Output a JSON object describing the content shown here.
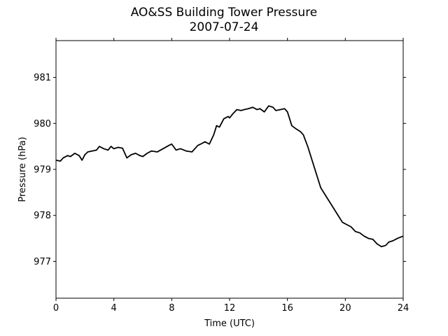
{
  "chart_data": {
    "type": "line",
    "title": "AO&SS Building Tower Pressure",
    "subtitle": "2007-07-24",
    "xlabel": "Time (UTC)",
    "ylabel": "Pressure (hPa)",
    "xlim": [
      0,
      24
    ],
    "ylim": [
      976.2,
      981.8
    ],
    "xticks": [
      "0",
      "4",
      "8",
      "12",
      "16",
      "20",
      "24"
    ],
    "yticks": [
      "977",
      "978",
      "979",
      "980",
      "981"
    ],
    "grid": false,
    "series_color": "#000000",
    "series": [
      {
        "x": [
          0,
          0.3,
          0.5,
          0.8,
          1.0,
          1.3,
          1.6,
          1.8,
          2.0,
          2.2,
          2.5,
          2.8,
          3.0,
          3.3,
          3.6,
          3.8,
          4.0,
          4.3,
          4.6,
          4.9,
          5.2,
          5.5,
          5.8,
          6.0,
          6.3,
          6.6,
          7.0,
          7.4,
          7.8,
          8.0,
          8.3,
          8.6,
          9.0,
          9.4,
          9.8,
          10.0,
          10.3,
          10.6,
          10.9,
          11.1,
          11.3,
          11.6,
          11.9,
          12.0,
          12.2,
          12.5,
          12.8,
          13.0,
          13.3,
          13.6,
          13.9,
          14.1,
          14.4,
          14.7,
          15.0,
          15.2,
          15.5,
          15.8,
          16.0,
          16.3,
          16.6,
          16.9,
          17.1,
          17.4,
          17.7,
          18.0,
          18.3,
          18.6,
          18.9,
          19.2,
          19.5,
          19.8,
          20.1,
          20.4,
          20.7,
          21.0,
          21.3,
          21.6,
          21.9,
          22.2,
          22.5,
          22.8,
          23.0,
          23.3,
          23.6,
          24.0
        ],
        "y": [
          979.2,
          979.18,
          979.25,
          979.3,
          979.28,
          979.35,
          979.3,
          979.2,
          979.32,
          979.38,
          979.4,
          979.42,
          979.5,
          979.45,
          979.42,
          979.5,
          979.45,
          979.48,
          979.46,
          979.25,
          979.32,
          979.35,
          979.3,
          979.28,
          979.35,
          979.4,
          979.38,
          979.45,
          979.52,
          979.55,
          979.42,
          979.45,
          979.4,
          979.38,
          979.52,
          979.55,
          979.6,
          979.55,
          979.75,
          979.95,
          979.92,
          980.1,
          980.15,
          980.12,
          980.2,
          980.3,
          980.28,
          980.3,
          980.32,
          980.35,
          980.3,
          980.32,
          980.25,
          980.38,
          980.35,
          980.28,
          980.3,
          980.32,
          980.25,
          979.95,
          979.88,
          979.82,
          979.75,
          979.5,
          979.2,
          978.9,
          978.6,
          978.45,
          978.3,
          978.15,
          978.0,
          977.85,
          977.8,
          977.75,
          977.65,
          977.62,
          977.55,
          977.5,
          977.48,
          977.38,
          977.32,
          977.35,
          977.42,
          977.45,
          977.5,
          977.55
        ]
      }
    ]
  }
}
